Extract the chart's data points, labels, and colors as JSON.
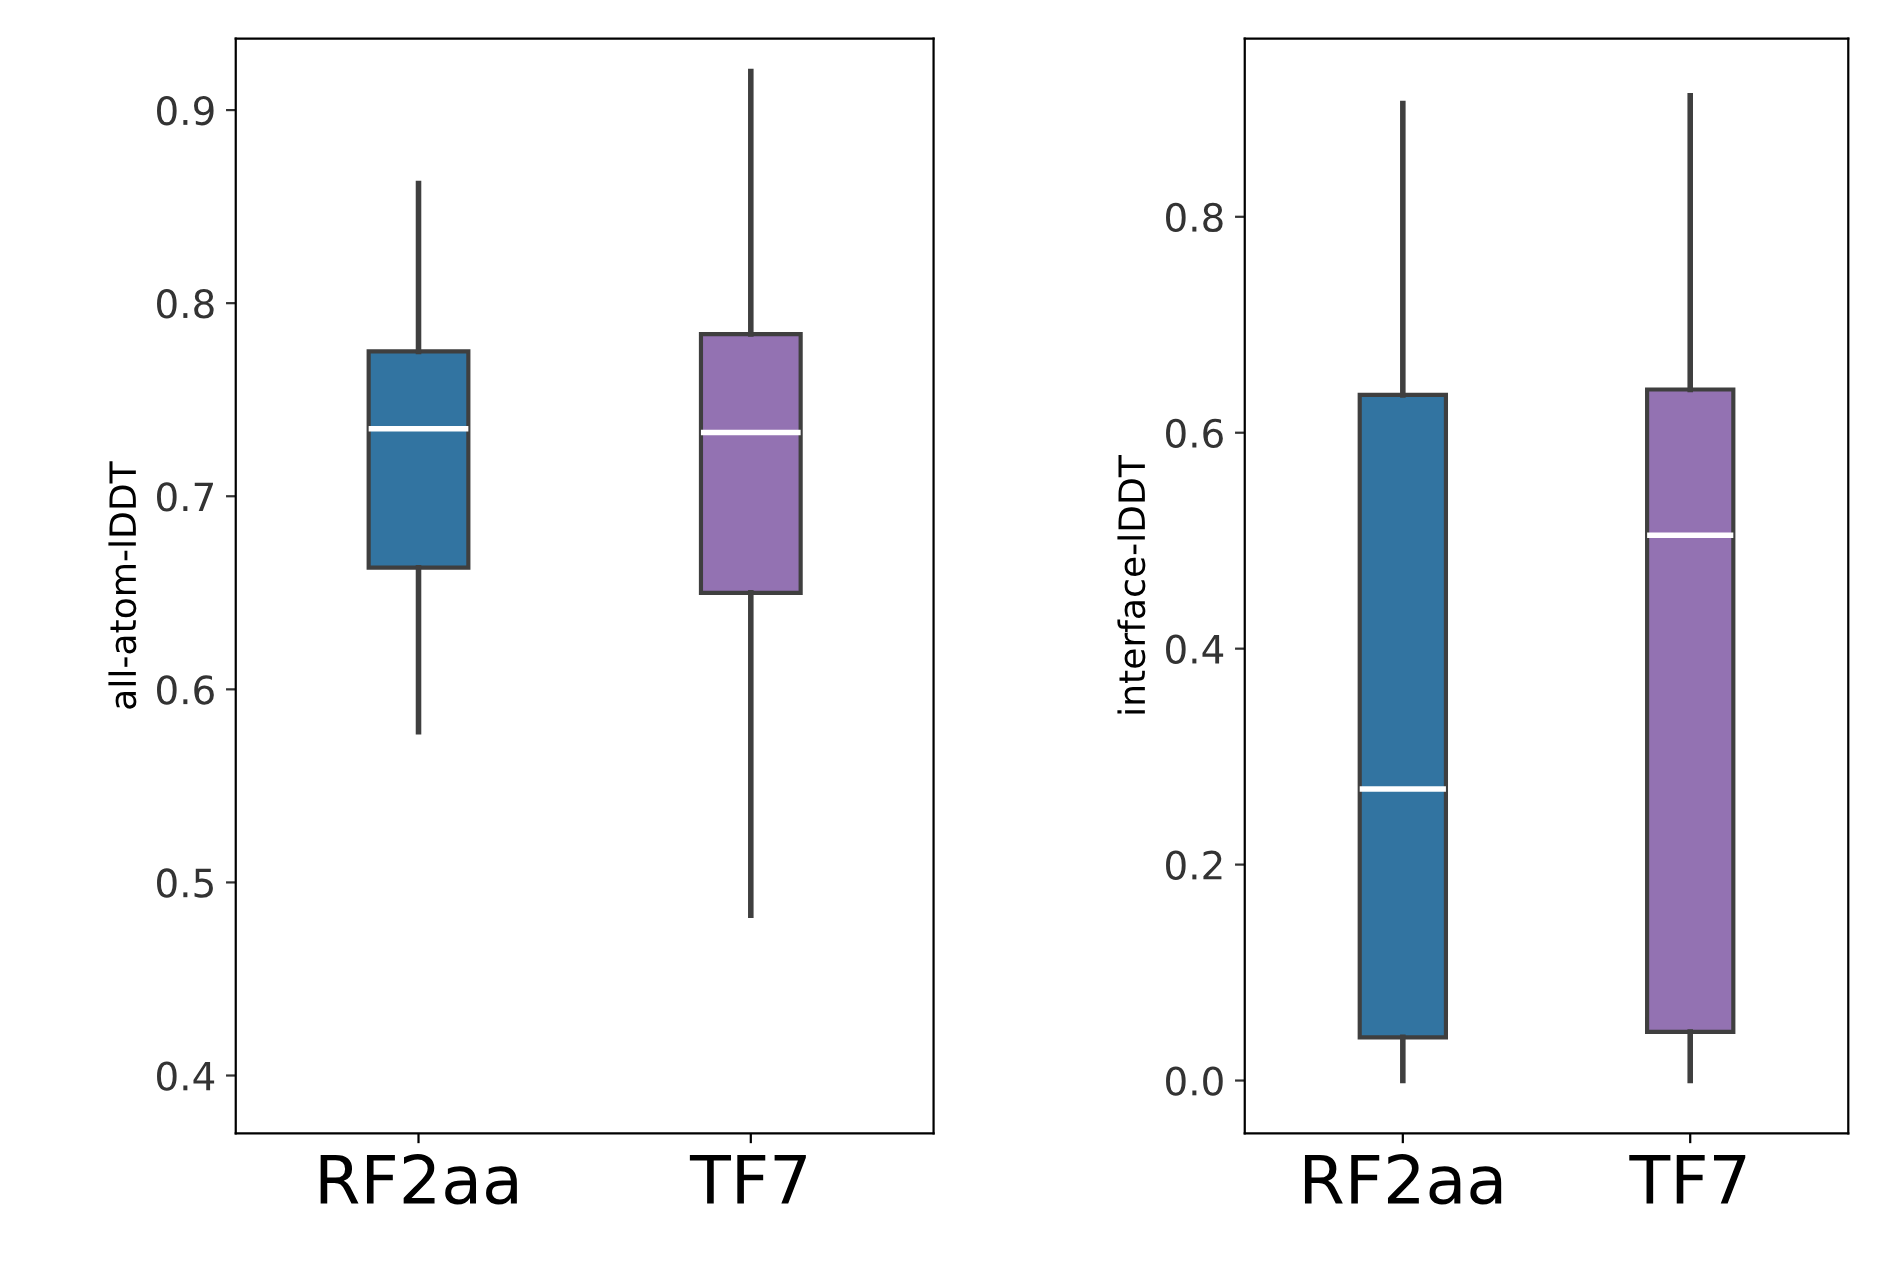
{
  "chart_data": [
    {
      "type": "box",
      "ylabel": "all-atom-lDDT",
      "categories": [
        "RF2aa",
        "TF7"
      ],
      "colors": [
        "#3274a1",
        "#9372b2"
      ],
      "boxes": [
        {
          "low": 0.578,
          "q1": 0.663,
          "median": 0.735,
          "q3": 0.775,
          "high": 0.862
        },
        {
          "low": 0.483,
          "q1": 0.65,
          "median": 0.733,
          "q3": 0.784,
          "high": 0.92
        }
      ],
      "ylim": [
        0.37,
        0.937
      ],
      "yticks": [
        0.4,
        0.5,
        0.6,
        0.7,
        0.8,
        0.9
      ]
    },
    {
      "type": "box",
      "ylabel": "interface-lDDT",
      "categories": [
        "RF2aa",
        "TF7"
      ],
      "colors": [
        "#3274a1",
        "#9372b2"
      ],
      "boxes": [
        {
          "low": 0.0,
          "q1": 0.04,
          "median": 0.27,
          "q3": 0.635,
          "high": 0.905
        },
        {
          "low": 0.0,
          "q1": 0.045,
          "median": 0.505,
          "q3": 0.64,
          "high": 0.912
        }
      ],
      "ylim": [
        -0.049,
        0.965
      ],
      "yticks": [
        {
          "value": 0,
          "label": "0.0"
        },
        0.2,
        0.4,
        0.6,
        0.8
      ]
    }
  ]
}
